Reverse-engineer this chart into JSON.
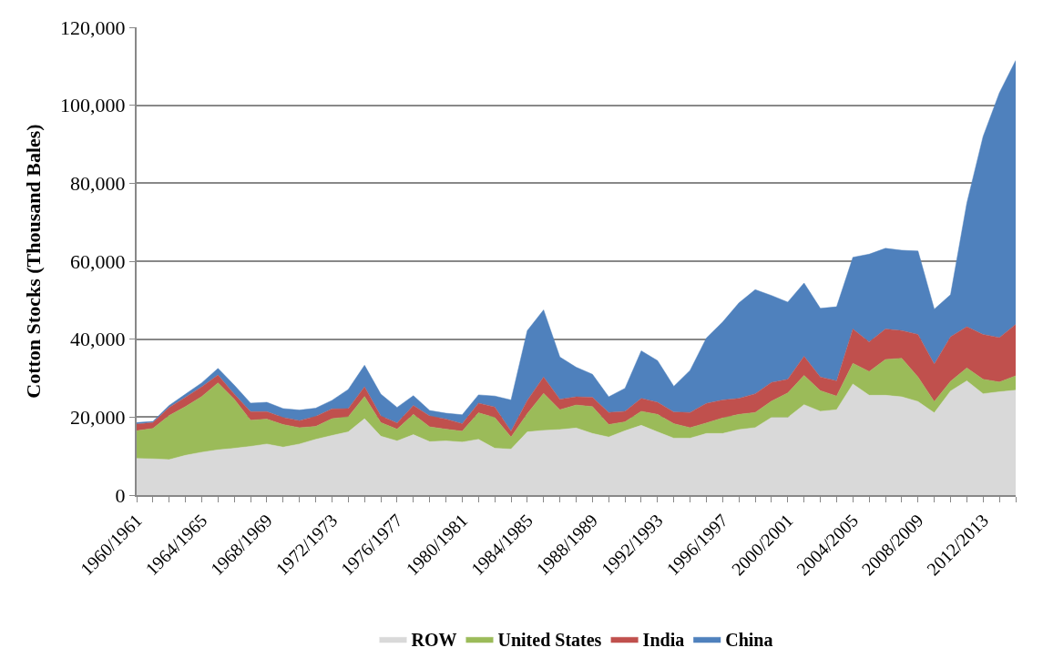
{
  "chart_data": {
    "type": "area",
    "stacked": true,
    "ylabel": "Cotton Stocks (Thousand Bales)",
    "categories": [
      "1960/1961",
      null,
      null,
      null,
      "1964/1965",
      null,
      null,
      null,
      "1968/1969",
      null,
      null,
      null,
      "1972/1973",
      null,
      null,
      null,
      "1976/1977",
      null,
      null,
      null,
      "1980/1981",
      null,
      null,
      null,
      "1984/1985",
      null,
      null,
      null,
      "1988/1989",
      null,
      null,
      null,
      "1992/1993",
      null,
      null,
      null,
      "1996/1997",
      null,
      null,
      null,
      "2000/2001",
      null,
      null,
      null,
      "2004/2005",
      null,
      null,
      null,
      "2008/2009",
      null,
      null,
      null,
      "2012/2013",
      null,
      null
    ],
    "series": [
      {
        "name": "ROW",
        "color": "#d9d9d9",
        "values": [
          9400,
          9300,
          9100,
          10200,
          11000,
          11600,
          12000,
          12500,
          13100,
          12300,
          13100,
          14300,
          15300,
          16200,
          19600,
          15100,
          13900,
          15500,
          13700,
          13900,
          13600,
          14300,
          12000,
          11800,
          16200,
          16600,
          16800,
          17200,
          15800,
          14900,
          16500,
          17900,
          16200,
          14600,
          14600,
          15800,
          15800,
          16800,
          17300,
          19900,
          19900,
          23200,
          21500,
          21900,
          28500,
          25600,
          25600,
          25200,
          24000,
          21100,
          26700,
          29300,
          26000,
          26500,
          26900
        ]
      },
      {
        "name": "United States",
        "color": "#9bbb59",
        "values": [
          7100,
          7800,
          11300,
          12500,
          14300,
          17200,
          12600,
          6700,
          6400,
          5800,
          4200,
          3300,
          4300,
          3900,
          5700,
          3500,
          3000,
          5200,
          3800,
          3000,
          2800,
          6800,
          7900,
          3100,
          4700,
          9500,
          5100,
          5900,
          6900,
          3200,
          2300,
          3600,
          4500,
          3700,
          2700,
          2700,
          4000,
          3900,
          3900,
          4200,
          6300,
          7500,
          5300,
          3500,
          5300,
          6100,
          9200,
          9900,
          6300,
          2900,
          2500,
          3300,
          3700,
          2500,
          3700
        ]
      },
      {
        "name": "India",
        "color": "#c0504d",
        "values": [
          1700,
          1500,
          2100,
          2400,
          2500,
          2000,
          1300,
          2200,
          1900,
          1800,
          1800,
          2600,
          2500,
          2100,
          2500,
          1700,
          1600,
          2300,
          2800,
          2600,
          1900,
          2500,
          2700,
          1500,
          3400,
          4200,
          2700,
          2100,
          2400,
          3100,
          2700,
          3300,
          3100,
          3000,
          3900,
          5000,
          4600,
          4100,
          4800,
          4800,
          3500,
          4900,
          3500,
          3900,
          8800,
          7600,
          7800,
          7100,
          10900,
          9600,
          11400,
          10600,
          11500,
          11400,
          13200
        ]
      },
      {
        "name": "China",
        "color": "#4f81bd",
        "values": [
          400,
          300,
          500,
          800,
          1000,
          1700,
          2300,
          2200,
          2400,
          2300,
          2700,
          2100,
          2200,
          4900,
          5500,
          5600,
          4000,
          2500,
          1400,
          1500,
          2300,
          2100,
          2800,
          8000,
          17900,
          17200,
          10800,
          7600,
          5900,
          4000,
          5900,
          12200,
          10700,
          6600,
          10800,
          16800,
          20000,
          24500,
          26700,
          22300,
          19800,
          18800,
          17600,
          19000,
          18400,
          22500,
          20700,
          20600,
          21400,
          14100,
          10800,
          31700,
          50800,
          62800,
          67700
        ]
      }
    ],
    "ylim": [
      0,
      120000
    ],
    "yticks": [
      {
        "value": 0,
        "label": "0"
      },
      {
        "value": 20000,
        "label": "20,000"
      },
      {
        "value": 40000,
        "label": "40,000"
      },
      {
        "value": 60000,
        "label": "60,000"
      },
      {
        "value": 80000,
        "label": "80,000"
      },
      {
        "value": 100000,
        "label": "100,000"
      },
      {
        "value": 120000,
        "label": "120,000"
      }
    ],
    "grid": "y",
    "legend": "bottom"
  }
}
